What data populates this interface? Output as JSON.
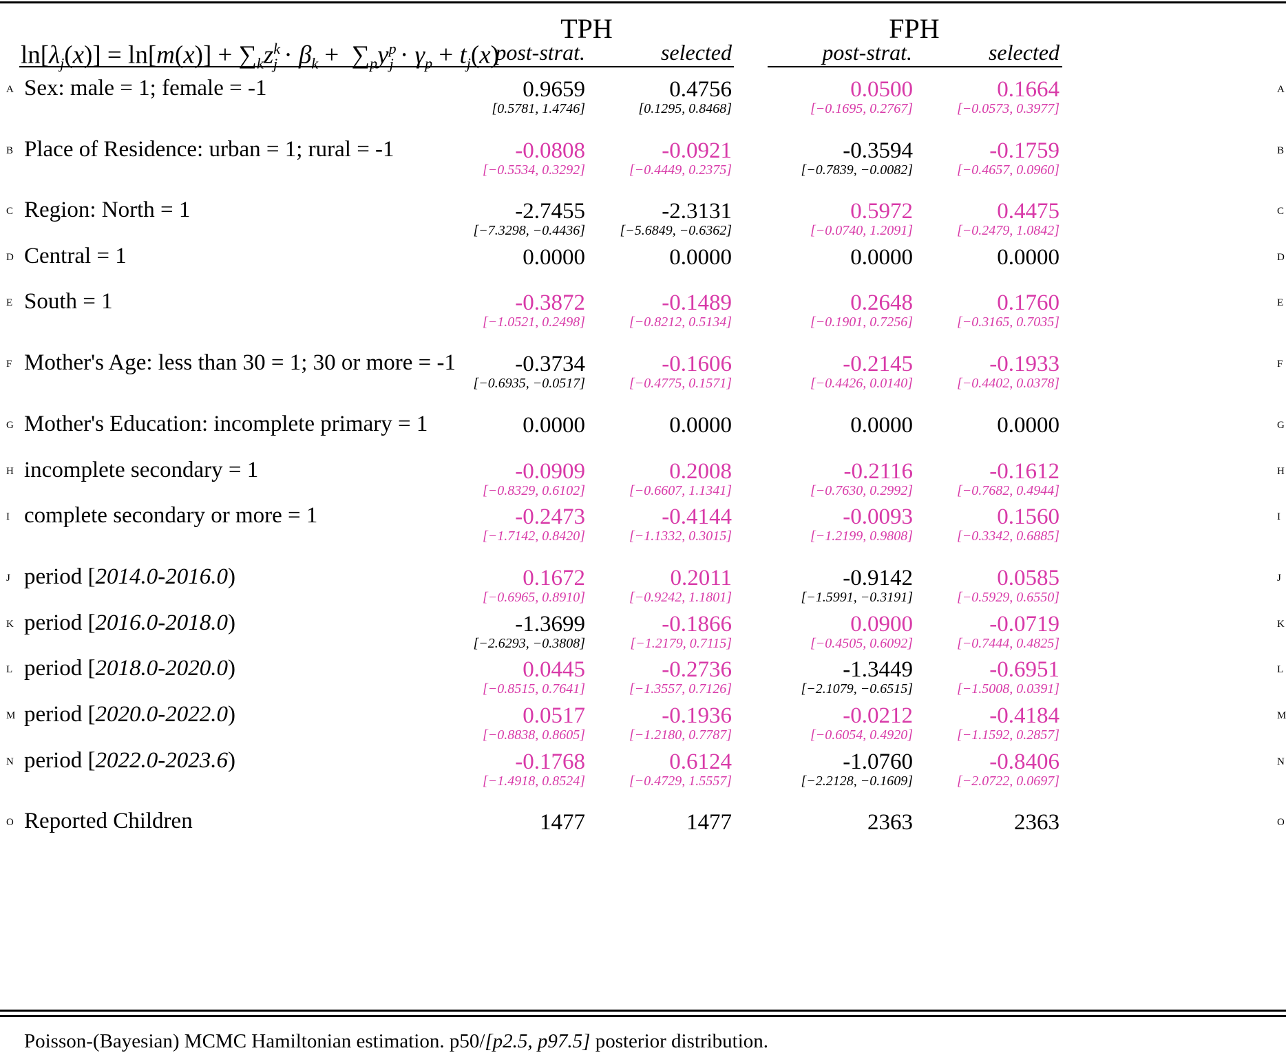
{
  "header": {
    "formula": "ln[λ_j(x)] = ln[m(x)] + ∑_k z_j^k · β_k + ∑_p y_j^p · γ_p + t_j(x)",
    "groups": [
      "TPH",
      "FPH"
    ],
    "subcolumns": [
      "post-strat.",
      "selected",
      "post-strat.",
      "selected"
    ]
  },
  "colors": {
    "significant": "#000000",
    "not_significant": "#d83aa8"
  },
  "rows": [
    {
      "letter": "A",
      "label": "Sex: male = 1; female = -1",
      "cells": [
        {
          "v": "0.9659",
          "ci": "[0.5781, 1.4746]",
          "pink": false
        },
        {
          "v": "0.4756",
          "ci": "[0.1295, 0.8468]",
          "pink": false
        },
        {
          "v": "0.0500",
          "ci": "[−0.1695, 0.2767]",
          "pink": true
        },
        {
          "v": "0.1664",
          "ci": "[−0.0573, 0.3977]",
          "pink": true
        }
      ]
    },
    {
      "letter": "B",
      "label": "Place of Residence: urban = 1; rural = -1",
      "cells": [
        {
          "v": "-0.0808",
          "ci": "[−0.5534, 0.3292]",
          "pink": true
        },
        {
          "v": "-0.0921",
          "ci": "[−0.4449, 0.2375]",
          "pink": true
        },
        {
          "v": "-0.3594",
          "ci": "[−0.7839, −0.0082]",
          "pink": false
        },
        {
          "v": "-0.1759",
          "ci": "[−0.4657, 0.0960]",
          "pink": true
        }
      ]
    },
    {
      "letter": "C",
      "label": "Region: North = 1",
      "cells": [
        {
          "v": "-2.7455",
          "ci": "[−7.3298, −0.4436]",
          "pink": false
        },
        {
          "v": "-2.3131",
          "ci": "[−5.6849, −0.6362]",
          "pink": false
        },
        {
          "v": "0.5972",
          "ci": "[−0.0740, 1.2091]",
          "pink": true
        },
        {
          "v": "0.4475",
          "ci": "[−0.2479, 1.0842]",
          "pink": true
        }
      ]
    },
    {
      "letter": "D",
      "label": "Central = 1",
      "cells": [
        {
          "v": "0.0000",
          "ci": "",
          "pink": false
        },
        {
          "v": "0.0000",
          "ci": "",
          "pink": false
        },
        {
          "v": "0.0000",
          "ci": "",
          "pink": false
        },
        {
          "v": "0.0000",
          "ci": "",
          "pink": false
        }
      ]
    },
    {
      "letter": "E",
      "label": "South = 1",
      "cells": [
        {
          "v": "-0.3872",
          "ci": "[−1.0521, 0.2498]",
          "pink": true
        },
        {
          "v": "-0.1489",
          "ci": "[−0.8212, 0.5134]",
          "pink": true
        },
        {
          "v": "0.2648",
          "ci": "[−0.1901, 0.7256]",
          "pink": true
        },
        {
          "v": "0.1760",
          "ci": "[−0.3165, 0.7035]",
          "pink": true
        }
      ]
    },
    {
      "letter": "F",
      "label": "Mother's Age: less than 30 = 1; 30 or more = -1",
      "cells": [
        {
          "v": "-0.3734",
          "ci": "[−0.6935, −0.0517]",
          "pink": false
        },
        {
          "v": "-0.1606",
          "ci": "[−0.4775, 0.1571]",
          "pink": true
        },
        {
          "v": "-0.2145",
          "ci": "[−0.4426, 0.0140]",
          "pink": true
        },
        {
          "v": "-0.1933",
          "ci": "[−0.4402, 0.0378]",
          "pink": true
        }
      ]
    },
    {
      "letter": "G",
      "label": "Mother's Education: incomplete primary = 1",
      "cells": [
        {
          "v": "0.0000",
          "ci": "",
          "pink": false
        },
        {
          "v": "0.0000",
          "ci": "",
          "pink": false
        },
        {
          "v": "0.0000",
          "ci": "",
          "pink": false
        },
        {
          "v": "0.0000",
          "ci": "",
          "pink": false
        }
      ]
    },
    {
      "letter": "H",
      "label": "incomplete secondary = 1",
      "cells": [
        {
          "v": "-0.0909",
          "ci": "[−0.8329, 0.6102]",
          "pink": true
        },
        {
          "v": "0.2008",
          "ci": "[−0.6607, 1.1341]",
          "pink": true
        },
        {
          "v": "-0.2116",
          "ci": "[−0.7630, 0.2992]",
          "pink": true
        },
        {
          "v": "-0.1612",
          "ci": "[−0.7682, 0.4944]",
          "pink": true
        }
      ]
    },
    {
      "letter": "I",
      "label": "complete secondary or more = 1",
      "cells": [
        {
          "v": "-0.2473",
          "ci": "[−1.7142, 0.8420]",
          "pink": true
        },
        {
          "v": "-0.4144",
          "ci": "[−1.1332, 0.3015]",
          "pink": true
        },
        {
          "v": "-0.0093",
          "ci": "[−1.2199, 0.9808]",
          "pink": true
        },
        {
          "v": "0.1560",
          "ci": "[−0.3342, 0.6885]",
          "pink": true
        }
      ]
    },
    {
      "letter": "J",
      "label": "period [",
      "label_italic": "2014.0-2016.0",
      "label_end": ")",
      "cells": [
        {
          "v": "0.1672",
          "ci": "[−0.6965, 0.8910]",
          "pink": true
        },
        {
          "v": "0.2011",
          "ci": "[−0.9242, 1.1801]",
          "pink": true
        },
        {
          "v": "-0.9142",
          "ci": "[−1.5991, −0.3191]",
          "pink": false
        },
        {
          "v": "0.0585",
          "ci": "[−0.5929, 0.6550]",
          "pink": true
        }
      ]
    },
    {
      "letter": "K",
      "label": "period [",
      "label_italic": "2016.0-2018.0",
      "label_end": ")",
      "cells": [
        {
          "v": "-1.3699",
          "ci": "[−2.6293, −0.3808]",
          "pink": false
        },
        {
          "v": "-0.1866",
          "ci": "[−1.2179, 0.7115]",
          "pink": true
        },
        {
          "v": "0.0900",
          "ci": "[−0.4505, 0.6092]",
          "pink": true
        },
        {
          "v": "-0.0719",
          "ci": "[−0.7444, 0.4825]",
          "pink": true
        }
      ]
    },
    {
      "letter": "L",
      "label": "period [",
      "label_italic": "2018.0-2020.0",
      "label_end": ")",
      "cells": [
        {
          "v": "0.0445",
          "ci": "[−0.8515, 0.7641]",
          "pink": true
        },
        {
          "v": "-0.2736",
          "ci": "[−1.3557, 0.7126]",
          "pink": true
        },
        {
          "v": "-1.3449",
          "ci": "[−2.1079, −0.6515]",
          "pink": false
        },
        {
          "v": "-0.6951",
          "ci": "[−1.5008, 0.0391]",
          "pink": true
        }
      ]
    },
    {
      "letter": "M",
      "label": "period [",
      "label_italic": "2020.0-2022.0",
      "label_end": ")",
      "cells": [
        {
          "v": "0.0517",
          "ci": "[−0.8838, 0.8605]",
          "pink": true
        },
        {
          "v": "-0.1936",
          "ci": "[−1.2180, 0.7787]",
          "pink": true
        },
        {
          "v": "-0.0212",
          "ci": "[−0.6054, 0.4920]",
          "pink": true
        },
        {
          "v": "-0.4184",
          "ci": "[−1.1592, 0.2857]",
          "pink": true
        }
      ]
    },
    {
      "letter": "N",
      "label": "period [",
      "label_italic": "2022.0-2023.6",
      "label_end": ")",
      "cells": [
        {
          "v": "-0.1768",
          "ci": "[−1.4918, 0.8524]",
          "pink": true
        },
        {
          "v": "0.6124",
          "ci": "[−0.4729, 1.5557]",
          "pink": true
        },
        {
          "v": "-1.0760",
          "ci": "[−2.2128, −0.1609]",
          "pink": false
        },
        {
          "v": "-0.8406",
          "ci": "[−2.0722, 0.0697]",
          "pink": true
        }
      ]
    },
    {
      "letter": "O",
      "label": "Reported Children",
      "cells": [
        {
          "v": "1477",
          "ci": "",
          "pink": false
        },
        {
          "v": "1477",
          "ci": "",
          "pink": false
        },
        {
          "v": "2363",
          "ci": "",
          "pink": false
        },
        {
          "v": "2363",
          "ci": "",
          "pink": false
        }
      ]
    }
  ],
  "footnote": {
    "prefix": "Poisson-(Bayesian) MCMC Hamiltonian estimation. p50/",
    "italic": "[p2.5, p97.5]",
    "suffix": " posterior distribution."
  }
}
